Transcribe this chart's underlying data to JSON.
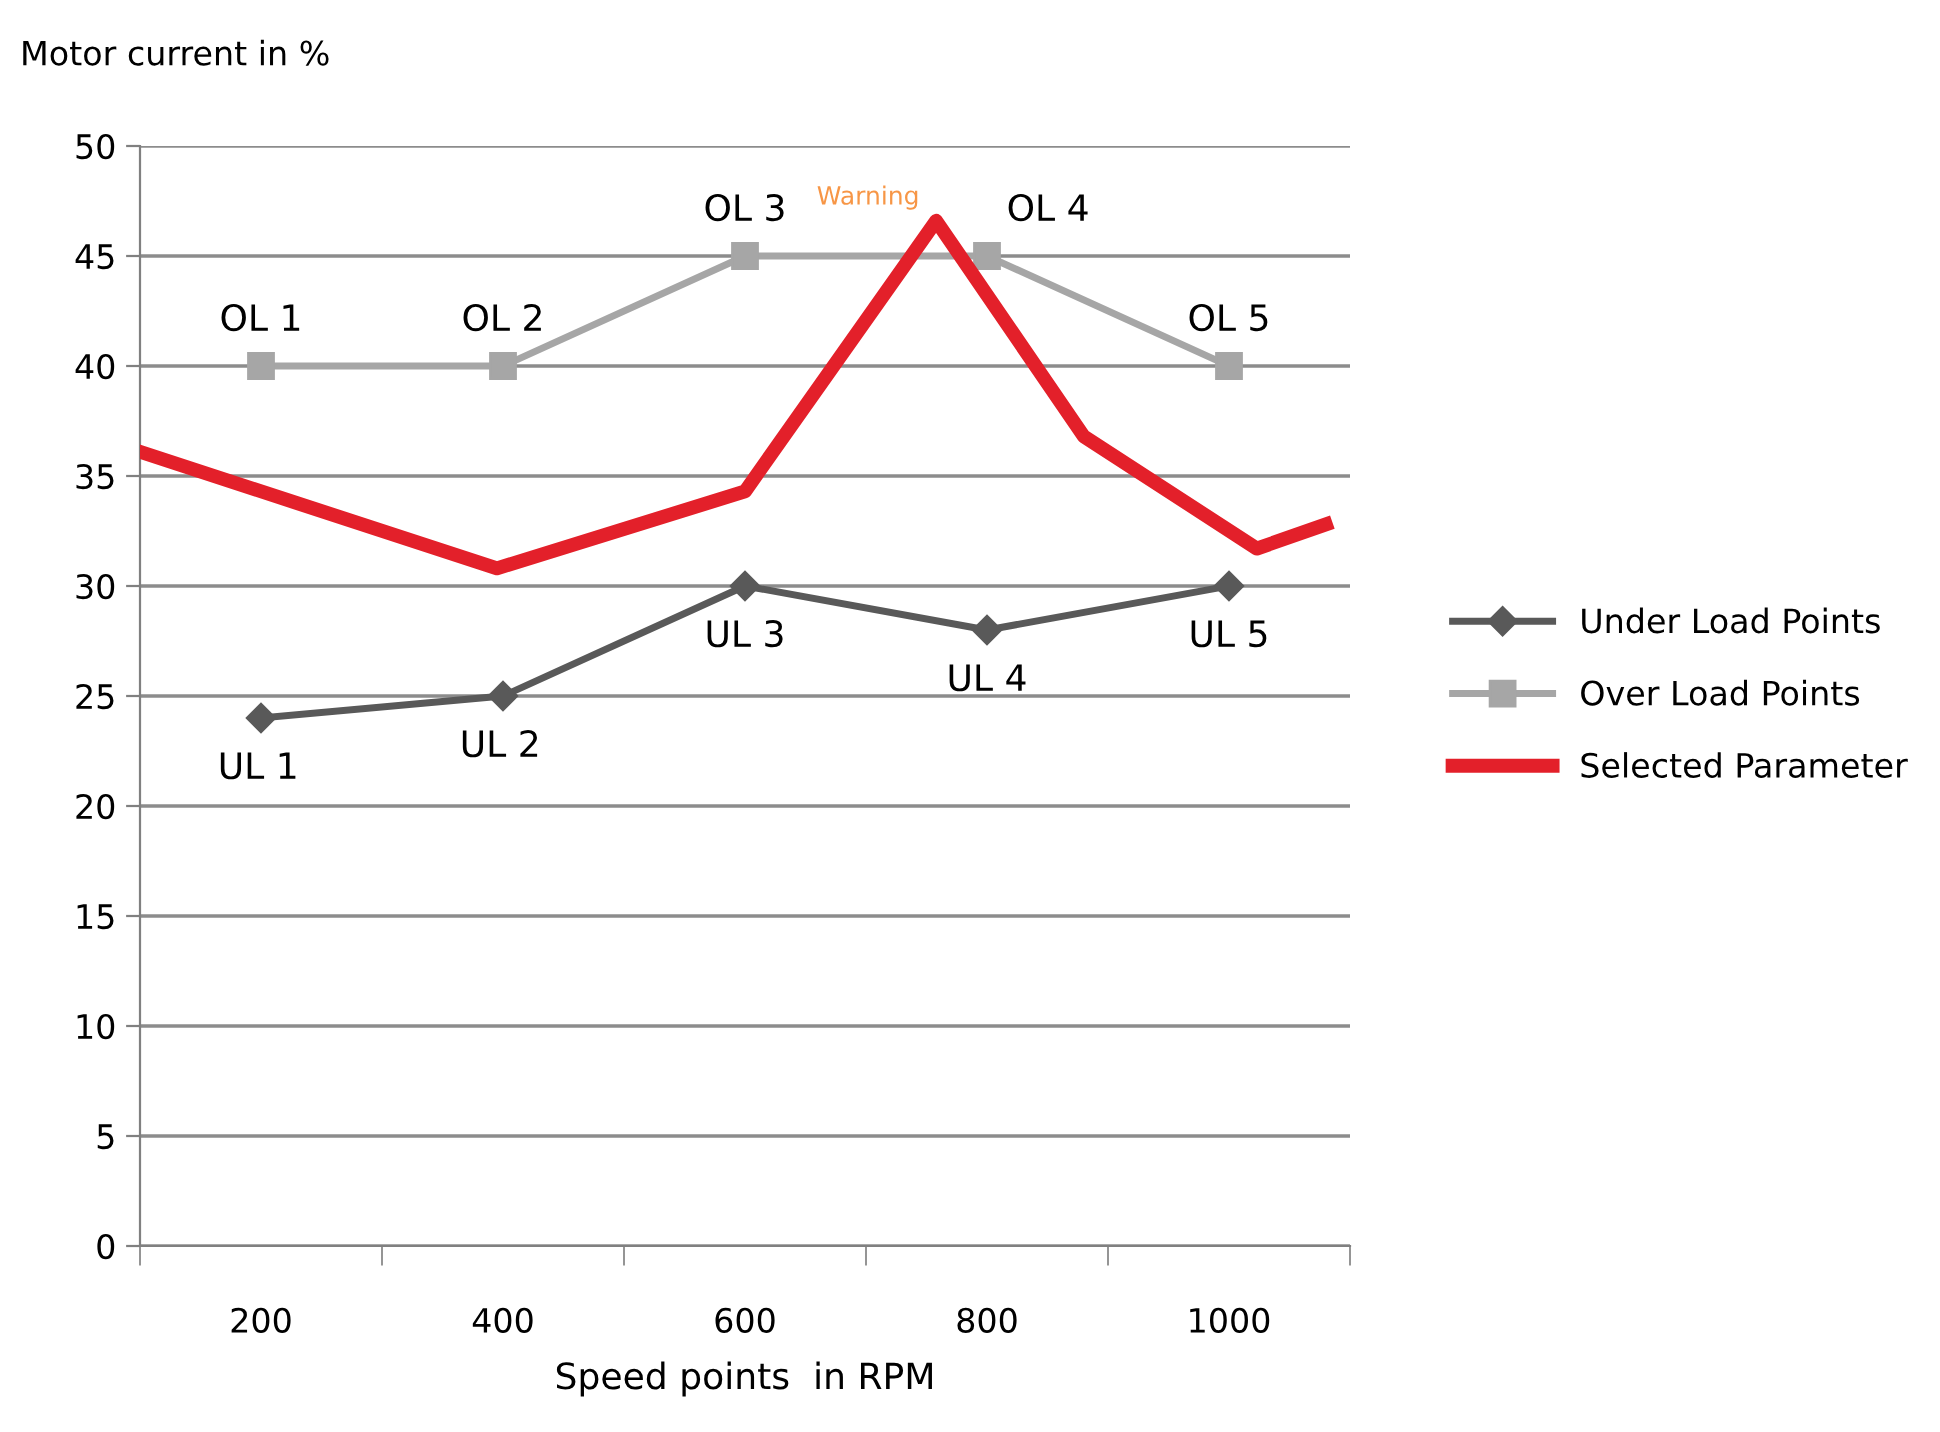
{
  "chart_data": {
    "type": "line",
    "ylabel": "Motor current in %",
    "xlabel": "Speed points  in RPM",
    "xlim": [
      100,
      1100
    ],
    "xticks": [
      {
        "value": 100,
        "label": null
      },
      200,
      {
        "value": 300,
        "label": null
      },
      400,
      {
        "value": 500,
        "label": null
      },
      600,
      {
        "value": 700,
        "label": null
      },
      800,
      {
        "value": 900,
        "label": null
      },
      1000,
      {
        "value": 1100,
        "label": null
      }
    ],
    "ylim": [
      0,
      50
    ],
    "yticks": [
      0,
      5,
      10,
      15,
      20,
      25,
      30,
      35,
      40,
      45,
      50
    ],
    "grid": "y",
    "legend": "right",
    "series": [
      {
        "name": "Under Load Points",
        "color": "#595959",
        "marker": "diamond",
        "x": [
          200,
          400,
          600,
          800,
          1000
        ],
        "values": [
          24,
          25,
          30,
          28,
          30
        ]
      },
      {
        "name": "Over Load Points",
        "color": "#a6a6a6",
        "marker": "square",
        "x": [
          200,
          400,
          600,
          800,
          1000
        ],
        "values": [
          40,
          40,
          45,
          45,
          40
        ]
      },
      {
        "name": "Selected Parameter",
        "color": "#e3202a",
        "marker": "none",
        "x": [
          100,
          395,
          600,
          758,
          880,
          1023,
          1080
        ],
        "values": [
          36.1,
          30.8,
          34.3,
          46.6,
          36.8,
          31.7,
          32.8
        ]
      }
    ],
    "annotations": [
      {
        "text": "UL 1",
        "x": 200,
        "y": 24
      },
      {
        "text": "UL 2",
        "x": 400,
        "y": 25
      },
      {
        "text": "UL 3",
        "x": 600,
        "y": 30
      },
      {
        "text": "UL 4",
        "x": 800,
        "y": 28
      },
      {
        "text": "UL 5",
        "x": 1000,
        "y": 30
      },
      {
        "text": "OL 1",
        "x": 200,
        "y": 40
      },
      {
        "text": "OL 2",
        "x": 400,
        "y": 40
      },
      {
        "text": "OL 3",
        "x": 600,
        "y": 45
      },
      {
        "text": "OL 4",
        "x": 800,
        "y": 45
      },
      {
        "text": "OL 5",
        "x": 1000,
        "y": 40
      },
      {
        "text": "Warning",
        "x": 758,
        "y": 46.6
      }
    ]
  }
}
